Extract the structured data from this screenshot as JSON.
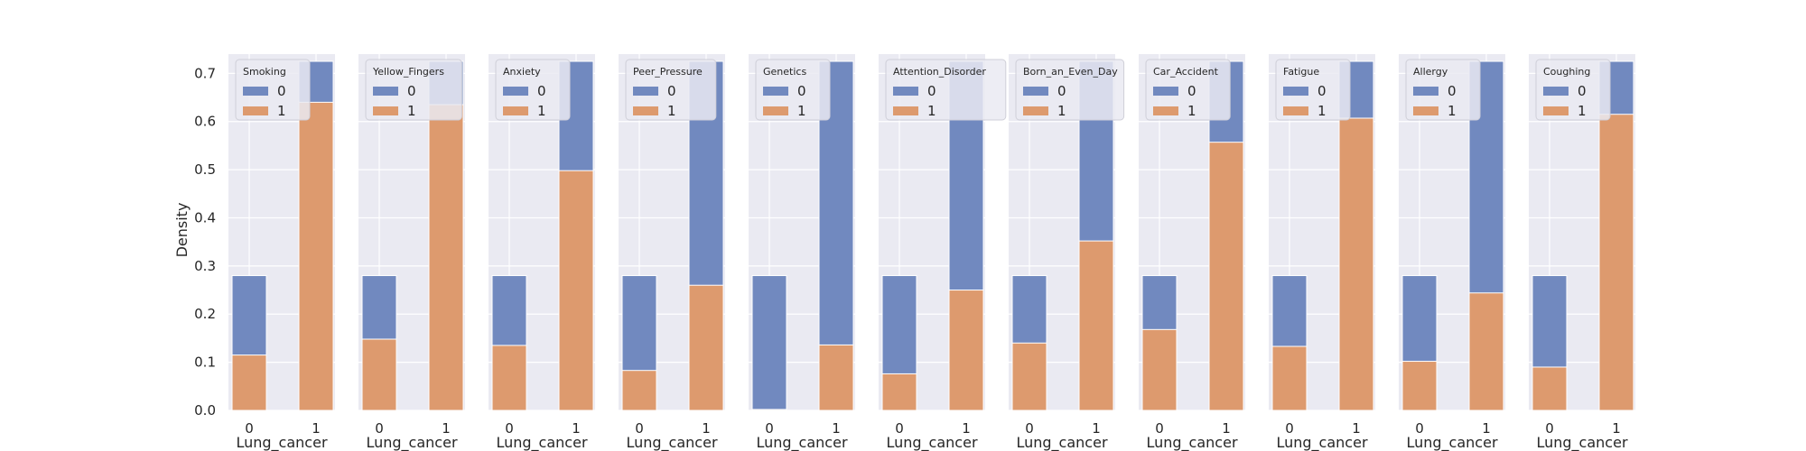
{
  "chart_data": {
    "type": "bar",
    "stacked": true,
    "ylabel": "Density",
    "xlabel": "Lung_cancer",
    "ylim": [
      0,
      0.74
    ],
    "yticks": [
      "0.0",
      "0.1",
      "0.2",
      "0.3",
      "0.4",
      "0.5",
      "0.6",
      "0.7"
    ],
    "categories": [
      "0",
      "1"
    ],
    "legend_entries": [
      "0",
      "1"
    ],
    "colors": {
      "0": "#7189bf",
      "1": "#dd9a6e",
      "panel_bg": "#eaeaf2",
      "grid": "#ffffff"
    },
    "legend_position": "upper-left",
    "group_totals": [
      0.28,
      0.725
    ],
    "panels": [
      {
        "title": "Smoking",
        "share_1": [
          0.115,
          0.64
        ]
      },
      {
        "title": "Yellow_Fingers",
        "share_1": [
          0.148,
          0.635
        ]
      },
      {
        "title": "Anxiety",
        "share_1": [
          0.135,
          0.498
        ]
      },
      {
        "title": "Peer_Pressure",
        "share_1": [
          0.083,
          0.26
        ]
      },
      {
        "title": "Genetics",
        "share_1": [
          0.002,
          0.136
        ]
      },
      {
        "title": "Attention_Disorder",
        "share_1": [
          0.076,
          0.25
        ]
      },
      {
        "title": "Born_an_Even_Day",
        "share_1": [
          0.14,
          0.352
        ]
      },
      {
        "title": "Car_Accident",
        "share_1": [
          0.168,
          0.557
        ]
      },
      {
        "title": "Fatigue",
        "share_1": [
          0.133,
          0.607
        ]
      },
      {
        "title": "Allergy",
        "share_1": [
          0.102,
          0.244
        ]
      },
      {
        "title": "Coughing",
        "share_1": [
          0.09,
          0.615
        ]
      }
    ]
  }
}
